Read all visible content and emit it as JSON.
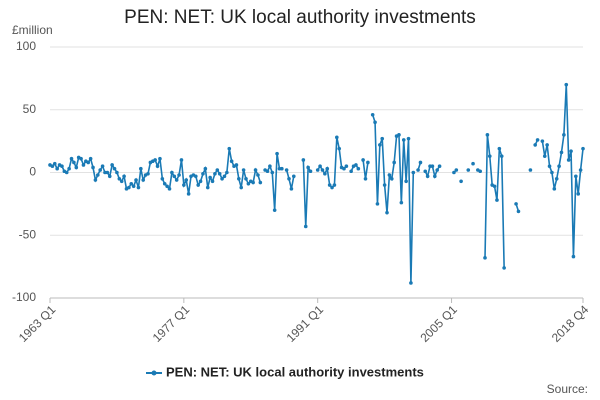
{
  "chart_data": {
    "type": "line",
    "title": "PEN: NET: UK local authority investments",
    "y_label": "£million",
    "source": "Source:",
    "categories": [
      "1963 Q1",
      null,
      null,
      null,
      null,
      null,
      null,
      null,
      null,
      null,
      null,
      null,
      null,
      null,
      null,
      null,
      null,
      null,
      null,
      null,
      null,
      null,
      null,
      null,
      null,
      null,
      null,
      null,
      null,
      null,
      null,
      null,
      null,
      null,
      null,
      null,
      null,
      null,
      null,
      null,
      null,
      null,
      null,
      null,
      null,
      null,
      null,
      null,
      null,
      null,
      null,
      null,
      null,
      null,
      null,
      null,
      "1977 Q1",
      null,
      null,
      null,
      null,
      null,
      null,
      null,
      null,
      null,
      null,
      null,
      null,
      null,
      null,
      null,
      null,
      null,
      null,
      null,
      null,
      null,
      null,
      null,
      null,
      null,
      null,
      null,
      null,
      null,
      null,
      null,
      null,
      null,
      null,
      null,
      null,
      null,
      null,
      null,
      null,
      null,
      null,
      null,
      null,
      null,
      null,
      null,
      null,
      null,
      null,
      null,
      null,
      null,
      null,
      null,
      "1991 Q1",
      null,
      null,
      null,
      null,
      null,
      null,
      null,
      null,
      null,
      null,
      null,
      null,
      null,
      null,
      null,
      null,
      null,
      null,
      null,
      null,
      null,
      null,
      null,
      null,
      null,
      null,
      null,
      null,
      null,
      null,
      null,
      null,
      null,
      null,
      null,
      null,
      null,
      null,
      null,
      null,
      null,
      null,
      null,
      null,
      null,
      null,
      null,
      null,
      null,
      null,
      null,
      null,
      null,
      null,
      null,
      "2005 Q1",
      null,
      null,
      null,
      null,
      null,
      null,
      null,
      null,
      null,
      null,
      null,
      null,
      null,
      null,
      null,
      null,
      null,
      null,
      null,
      null,
      null,
      null,
      null,
      null,
      null,
      null,
      null,
      null,
      null,
      null,
      null,
      null,
      null,
      null,
      null,
      null,
      null,
      null,
      null,
      null,
      null,
      null,
      null,
      null,
      null,
      null,
      null,
      null,
      null,
      null,
      null,
      null,
      null,
      null,
      "2018 Q4"
    ],
    "series": [
      {
        "name": "PEN: NET: UK local authority investments",
        "color": "#1a7ab5",
        "values": [
          6,
          5,
          7,
          3,
          6,
          5,
          1,
          0,
          3,
          11,
          8,
          4,
          12,
          11,
          6,
          9,
          8,
          11,
          4,
          -6,
          -2,
          2,
          5,
          0,
          0,
          -3,
          6,
          3,
          0,
          -5,
          -7,
          -3,
          -13,
          -12,
          -9,
          -11,
          -6,
          -12,
          3,
          -6,
          -2,
          -1,
          8,
          9,
          10,
          5,
          11,
          -5,
          -9,
          -11,
          -13,
          0,
          -3,
          -6,
          -2,
          10,
          -10,
          -6,
          -17,
          -3,
          -2,
          -3,
          -10,
          -7,
          -1,
          3,
          -12,
          -4,
          -7,
          -1,
          2,
          -1,
          -5,
          -3,
          0,
          19,
          9,
          5,
          6,
          -5,
          -12,
          2,
          -5,
          -9,
          -7,
          -8,
          2,
          -2,
          -8,
          null,
          2,
          1,
          5,
          0,
          -30,
          15,
          3,
          3,
          null,
          2,
          -5,
          -13,
          -3,
          null,
          null,
          null,
          10,
          -43,
          4,
          1,
          null,
          null,
          2,
          5,
          2,
          -1,
          3,
          -10,
          -12,
          -10,
          28,
          19,
          4,
          3,
          5,
          null,
          1,
          5,
          6,
          3,
          null,
          10,
          -5,
          8,
          null,
          46,
          40,
          -25,
          22,
          27,
          -10,
          -32,
          -2,
          -5,
          8,
          29,
          30,
          -24,
          26,
          -7,
          27,
          -88,
          0,
          null,
          2,
          8,
          null,
          1,
          -3,
          5,
          5,
          -3,
          2,
          5,
          null,
          null,
          null,
          null,
          null,
          0,
          2,
          null,
          -7,
          null,
          null,
          2,
          null,
          7,
          null,
          2,
          1,
          null,
          -68,
          30,
          13,
          -10,
          -11,
          -22,
          19,
          13,
          -76,
          null,
          null,
          null,
          null,
          -25,
          -31,
          null,
          null,
          null,
          null,
          2,
          null,
          22,
          26,
          null,
          25,
          13,
          22,
          5,
          0,
          -13,
          -5,
          5,
          16,
          30,
          70,
          10,
          17,
          -67,
          -3,
          -17,
          2,
          19
        ]
      }
    ],
    "ylim": [
      -100,
      100
    ],
    "yticks": [
      -100,
      -50,
      0,
      50,
      100
    ],
    "grid": true
  }
}
